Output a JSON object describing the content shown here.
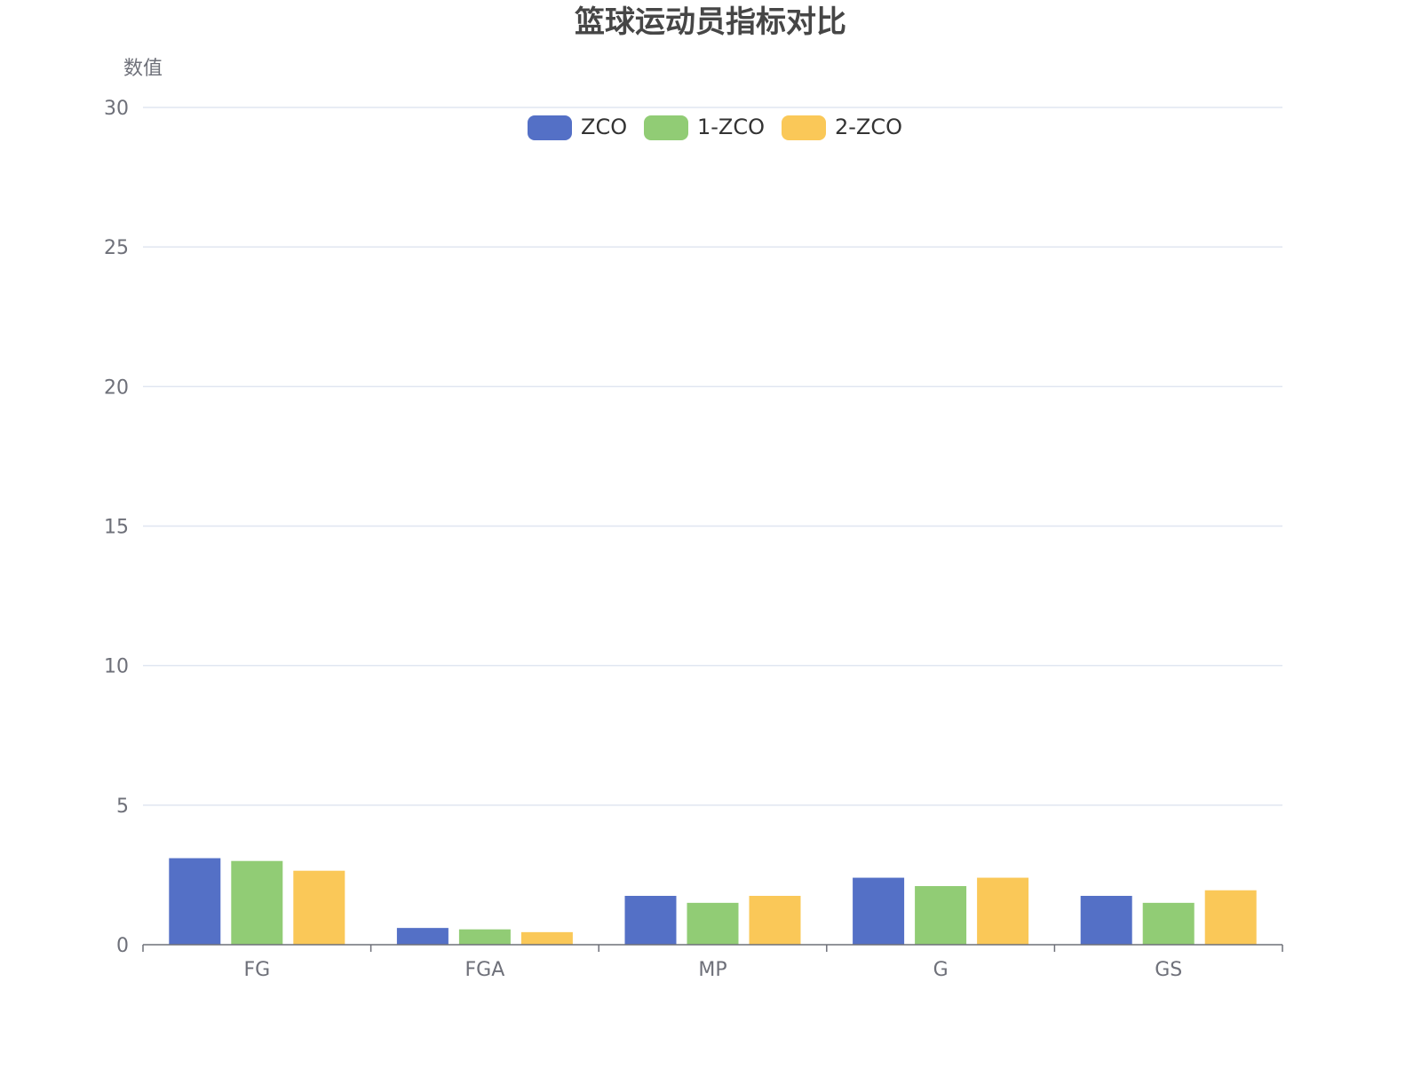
{
  "chart_data": {
    "type": "bar",
    "title": "篮球运动员指标对比",
    "xlabel": "",
    "ylabel": "数值",
    "categories": [
      "FG",
      "FGA",
      "MP",
      "G",
      "GS"
    ],
    "series": [
      {
        "name": "ZCO",
        "color": "#5470c6",
        "values": [
          3.1,
          0.6,
          1.75,
          2.4,
          1.75
        ]
      },
      {
        "name": "1-ZCO",
        "color": "#91cc75",
        "values": [
          3.0,
          0.55,
          1.5,
          2.1,
          1.5
        ]
      },
      {
        "name": "2-ZCO",
        "color": "#fac858",
        "values": [
          2.65,
          0.45,
          1.75,
          2.4,
          1.95
        ]
      }
    ],
    "ylim": [
      0,
      30
    ],
    "yticks": [
      0,
      5,
      10,
      15,
      20,
      25,
      30
    ],
    "grid": true,
    "legend_position": "top-center"
  }
}
